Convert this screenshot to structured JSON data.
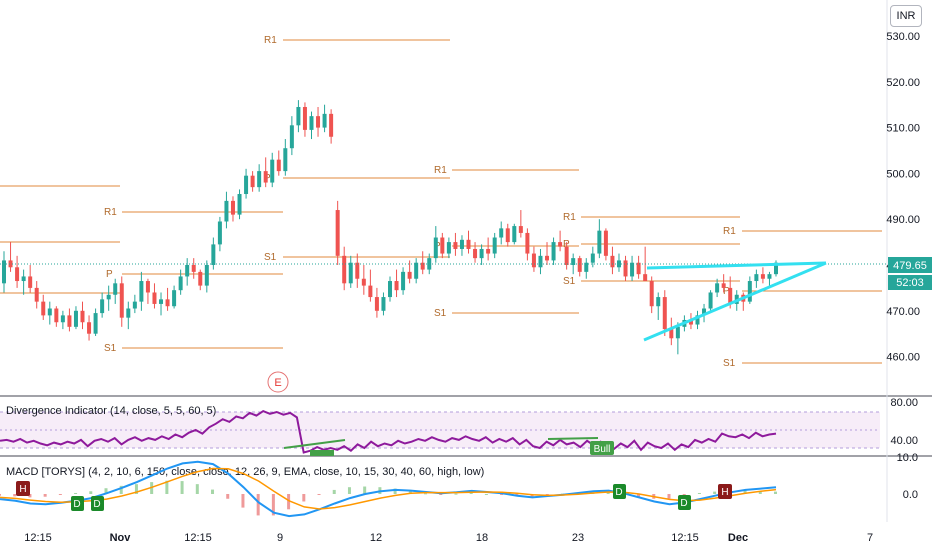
{
  "currency": "INR",
  "price_axis": [
    "530.00",
    "520.00",
    "510.00",
    "500.00",
    "490.00",
    "480.00",
    "470.00",
    "460.00"
  ],
  "last_price": "479.65",
  "countdown": "52:03",
  "x_axis": [
    "12:15",
    "Nov",
    "12:15",
    "9",
    "12",
    "18",
    "23",
    "12:15",
    "Dec",
    "7"
  ],
  "pivot_labels": {
    "r1": "R1",
    "p": "P",
    "s1": "S1"
  },
  "earnings_marker": "E",
  "divergence": {
    "title": "Divergence Indicator (14, close, 5, 5, 60, 5)",
    "levels": [
      "80.00",
      "40.00"
    ],
    "bull_label": "Bull"
  },
  "macd": {
    "title": "MACD [TORYS] (4, 2, 10, 6, 150, close, close, 12, 26, 9, EMA, close, 10, 15, 30, 40, 60, high, low)",
    "levels": [
      "10.0",
      "0.0"
    ],
    "h_label": "H",
    "d_label": "D"
  },
  "colors": {
    "up": "#26a69a",
    "down": "#ef5350",
    "pivot": "#e08a3c",
    "trend": "#33e0f0",
    "rsi": "#8e1a9c",
    "bull": "#43a047",
    "price_tag": "#26a69a",
    "macd": "#2196f3",
    "signal": "#ff9800"
  },
  "chart_data": [
    {
      "type": "candlestick",
      "ylim": [
        455,
        535
      ],
      "values": [
        [
          476.0,
          483.0,
          474.0,
          481.0
        ],
        [
          481.0,
          485.0,
          478.5,
          479.5
        ],
        [
          479.5,
          482.0,
          475.0,
          476.5
        ],
        [
          476.5,
          479.0,
          473.5,
          477.5
        ],
        [
          477.5,
          480.0,
          474.0,
          475.0
        ],
        [
          475.0,
          476.5,
          470.5,
          472.0
        ],
        [
          472.0,
          473.5,
          468.0,
          469.0
        ],
        [
          469.0,
          472.0,
          467.0,
          470.5
        ],
        [
          470.5,
          471.0,
          466.5,
          467.5
        ],
        [
          467.5,
          470.0,
          466.0,
          469.0
        ],
        [
          469.0,
          470.5,
          465.5,
          466.5
        ],
        [
          466.5,
          471.0,
          466.0,
          470.0
        ],
        [
          470.0,
          472.0,
          466.0,
          467.5
        ],
        [
          467.5,
          469.0,
          463.5,
          465.0
        ],
        [
          465.0,
          470.5,
          464.5,
          469.5
        ],
        [
          469.5,
          474.0,
          468.5,
          472.5
        ],
        [
          472.5,
          475.5,
          470.0,
          473.5
        ],
        [
          473.5,
          477.0,
          471.5,
          476.0
        ],
        [
          476.0,
          477.5,
          466.5,
          468.5
        ],
        [
          468.5,
          472.0,
          466.0,
          470.5
        ],
        [
          470.5,
          473.5,
          469.5,
          472.0
        ],
        [
          472.0,
          478.5,
          470.0,
          476.5
        ],
        [
          476.5,
          477.0,
          471.5,
          474.0
        ],
        [
          474.0,
          476.0,
          470.5,
          471.5
        ],
        [
          471.5,
          474.0,
          469.0,
          472.5
        ],
        [
          472.5,
          475.0,
          470.0,
          471.0
        ],
        [
          471.0,
          475.5,
          470.5,
          474.5
        ],
        [
          474.5,
          479.0,
          473.5,
          477.5
        ],
        [
          477.5,
          481.5,
          475.5,
          480.0
        ],
        [
          480.0,
          481.5,
          477.0,
          478.5
        ],
        [
          478.5,
          479.0,
          474.5,
          475.5
        ],
        [
          475.5,
          481.0,
          474.0,
          480.0
        ],
        [
          480.0,
          486.0,
          479.0,
          484.5
        ],
        [
          484.5,
          490.5,
          483.0,
          489.5
        ],
        [
          489.5,
          496.0,
          488.0,
          494.0
        ],
        [
          494.0,
          495.0,
          489.5,
          491.0
        ],
        [
          491.0,
          496.5,
          490.0,
          495.5
        ],
        [
          495.5,
          501.0,
          494.5,
          499.5
        ],
        [
          499.5,
          500.5,
          496.0,
          497.0
        ],
        [
          497.0,
          502.0,
          496.0,
          500.5
        ],
        [
          500.5,
          503.5,
          497.0,
          498.0
        ],
        [
          498.0,
          504.5,
          497.0,
          503.0
        ],
        [
          503.0,
          505.0,
          499.5,
          500.5
        ],
        [
          500.5,
          507.5,
          499.5,
          505.5
        ],
        [
          505.5,
          512.5,
          504.0,
          510.5
        ],
        [
          510.5,
          516.0,
          509.0,
          514.5
        ],
        [
          514.5,
          515.5,
          508.0,
          509.5
        ],
        [
          509.5,
          513.5,
          507.5,
          512.5
        ],
        [
          512.5,
          514.5,
          508.0,
          510.0
        ],
        [
          510.0,
          515.0,
          509.0,
          513.0
        ],
        [
          513.0,
          514.0,
          506.5,
          508.0
        ],
        [
          492.0,
          494.0,
          480.0,
          482.0
        ],
        [
          482.0,
          484.0,
          474.5,
          476.0
        ],
        [
          476.0,
          482.0,
          475.0,
          480.5
        ],
        [
          480.5,
          482.5,
          475.0,
          477.0
        ],
        [
          477.0,
          480.0,
          473.5,
          475.5
        ],
        [
          475.5,
          479.0,
          472.0,
          473.0
        ],
        [
          473.0,
          475.0,
          468.5,
          470.0
        ],
        [
          470.0,
          474.0,
          469.0,
          473.0
        ],
        [
          473.0,
          477.5,
          472.0,
          476.5
        ],
        [
          476.5,
          479.0,
          473.0,
          474.5
        ],
        [
          474.5,
          479.5,
          473.5,
          478.5
        ],
        [
          478.5,
          481.0,
          476.0,
          477.0
        ],
        [
          477.0,
          481.5,
          476.0,
          480.5
        ],
        [
          480.5,
          483.0,
          478.0,
          479.0
        ],
        [
          479.0,
          482.5,
          478.0,
          481.5
        ],
        [
          481.5,
          488.5,
          480.5,
          486.0
        ],
        [
          486.0,
          487.0,
          481.5,
          482.5
        ],
        [
          482.5,
          486.0,
          481.5,
          485.0
        ],
        [
          485.0,
          487.0,
          482.0,
          483.5
        ],
        [
          483.5,
          486.5,
          482.0,
          485.5
        ],
        [
          485.5,
          487.5,
          482.5,
          483.5
        ],
        [
          483.5,
          485.0,
          480.5,
          481.5
        ],
        [
          481.5,
          484.5,
          480.0,
          483.5
        ],
        [
          483.5,
          486.0,
          481.0,
          482.5
        ],
        [
          482.5,
          487.0,
          481.5,
          486.0
        ],
        [
          486.0,
          489.5,
          484.5,
          488.0
        ],
        [
          488.0,
          489.0,
          484.0,
          485.0
        ],
        [
          485.0,
          489.0,
          484.5,
          488.5
        ],
        [
          488.5,
          492.0,
          486.0,
          487.0
        ],
        [
          487.0,
          488.0,
          481.0,
          482.5
        ],
        [
          482.5,
          484.0,
          478.5,
          479.5
        ],
        [
          479.5,
          483.5,
          478.0,
          482.0
        ],
        [
          482.0,
          485.0,
          480.0,
          481.0
        ],
        [
          481.0,
          486.0,
          480.0,
          485.0
        ],
        [
          485.0,
          487.5,
          483.0,
          484.0
        ],
        [
          484.0,
          485.0,
          479.0,
          480.0
        ],
        [
          480.0,
          482.5,
          478.0,
          481.5
        ],
        [
          481.5,
          482.0,
          477.5,
          478.5
        ],
        [
          478.5,
          481.5,
          477.0,
          480.5
        ],
        [
          480.5,
          484.0,
          479.5,
          482.5
        ],
        [
          482.5,
          490.0,
          481.5,
          487.5
        ],
        [
          487.5,
          488.0,
          481.0,
          482.0
        ],
        [
          482.0,
          484.0,
          478.0,
          479.5
        ],
        [
          479.5,
          482.5,
          478.5,
          481.0
        ],
        [
          481.0,
          482.0,
          476.5,
          477.5
        ],
        [
          477.5,
          482.0,
          476.5,
          480.5
        ],
        [
          480.5,
          482.0,
          477.0,
          478.0
        ],
        [
          478.0,
          484.0,
          476.5,
          476.5
        ],
        [
          476.5,
          477.5,
          469.5,
          471.0
        ],
        [
          471.0,
          474.0,
          468.0,
          473.0
        ],
        [
          473.0,
          474.5,
          464.5,
          466.0
        ],
        [
          466.0,
          468.5,
          462.5,
          464.0
        ],
        [
          464.0,
          467.5,
          460.5,
          466.5
        ],
        [
          466.5,
          469.0,
          465.5,
          468.0
        ],
        [
          468.0,
          469.5,
          466.0,
          467.0
        ],
        [
          467.0,
          470.0,
          466.0,
          469.0
        ],
        [
          469.0,
          471.5,
          467.5,
          470.5
        ],
        [
          470.5,
          474.5,
          470.0,
          474.0
        ],
        [
          474.0,
          477.0,
          473.0,
          476.0
        ],
        [
          476.0,
          478.0,
          474.0,
          475.0
        ],
        [
          475.0,
          477.5,
          470.5,
          471.5
        ],
        [
          471.5,
          474.5,
          470.0,
          473.5
        ],
        [
          473.5,
          474.0,
          470.0,
          472.0
        ],
        [
          472.0,
          477.5,
          471.5,
          476.5
        ],
        [
          476.5,
          479.0,
          475.0,
          478.0
        ],
        [
          478.0,
          479.5,
          476.0,
          477.0
        ],
        [
          477.0,
          478.5,
          475.0,
          478.0
        ],
        [
          478.0,
          481.0,
          477.5,
          480.5
        ]
      ]
    },
    {
      "type": "line",
      "title": "Divergence Indicator (14, close, 5, 5, 60, 5)",
      "ylim": [
        35,
        85
      ],
      "values": [
        48,
        49,
        47,
        50,
        46,
        48,
        45,
        43,
        46,
        44,
        47,
        45,
        49,
        42,
        48,
        50,
        47,
        51,
        44,
        49,
        52,
        48,
        51,
        49,
        53,
        50,
        55,
        52,
        57,
        60,
        56,
        63,
        67,
        72,
        69,
        75,
        73,
        79,
        76,
        81,
        78,
        80,
        77,
        79,
        74,
        35,
        37,
        41,
        38,
        40,
        38,
        42,
        37,
        44,
        40,
        47,
        42,
        45,
        43,
        48,
        45,
        47,
        50,
        48,
        52,
        49,
        47,
        51,
        49,
        53,
        50,
        48,
        52,
        46,
        50,
        47,
        51,
        44,
        49,
        42,
        40,
        47,
        43,
        49,
        44,
        46,
        41,
        48,
        43,
        47,
        42,
        39,
        45,
        41,
        48,
        38,
        46,
        42,
        40,
        45,
        38,
        44,
        41,
        49,
        46,
        50,
        47,
        56,
        53,
        52,
        55,
        51,
        57,
        53,
        55,
        56
      ]
    },
    {
      "type": "line",
      "title": "MACD [TORYS] (4, 2, 10, 6, 150, close, close, 12, 26, 9, EMA, close, 10, 15, 30, 40, 60, high, low)",
      "ylim": [
        -12,
        12
      ],
      "series": [
        {
          "values": [
            -1.5,
            -2.0,
            -2.8,
            -3.0,
            -2.6,
            -2.0,
            -1.2,
            0.2,
            1.8,
            3.5,
            5.5,
            7.5,
            9.0,
            9.5,
            8.8,
            6.0,
            2.0,
            -2.5,
            -5.5,
            -6.5,
            -6.0,
            -4.5,
            -2.8,
            -1.2,
            0.0,
            0.8,
            1.2,
            1.0,
            0.6,
            0.2,
            0.5,
            0.9,
            0.6,
            0.2,
            -0.5,
            -1.0,
            -0.6,
            -0.2,
            0.3,
            0.8,
            1.0,
            0.2,
            -1.0,
            -2.2,
            -3.0,
            -2.5,
            -1.5,
            -0.5,
            0.5,
            1.2,
            1.6,
            2.0
          ]
        },
        {
          "values": [
            -1.0,
            -1.3,
            -1.8,
            -2.2,
            -2.4,
            -2.3,
            -2.0,
            -1.5,
            -0.6,
            0.6,
            2.0,
            3.6,
            5.2,
            6.6,
            7.5,
            7.4,
            6.0,
            3.8,
            0.8,
            -2.0,
            -3.8,
            -4.4,
            -4.0,
            -3.2,
            -2.2,
            -1.2,
            -0.4,
            0.2,
            0.4,
            0.4,
            0.4,
            0.5,
            0.6,
            0.5,
            0.2,
            -0.2,
            -0.4,
            -0.3,
            -0.1,
            0.3,
            0.6,
            0.5,
            0.0,
            -0.8,
            -1.6,
            -2.0,
            -1.8,
            -1.2,
            -0.5,
            0.2,
            0.8,
            1.3
          ]
        }
      ]
    }
  ]
}
